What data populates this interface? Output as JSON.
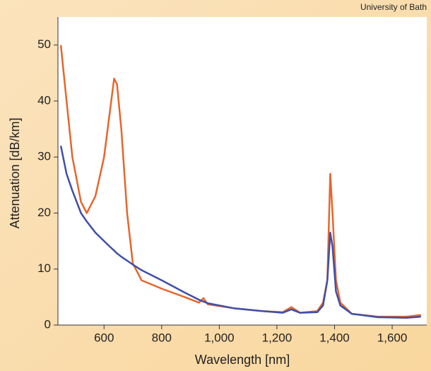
{
  "chart_data": {
    "type": "line",
    "credit": "University of Bath",
    "x_label": "Wavelength [nm]",
    "y_label": "Attenuation [dB/km]",
    "x": [
      450,
      470,
      490,
      520,
      540,
      570,
      600,
      620,
      635,
      645,
      660,
      680,
      700,
      730,
      800,
      880,
      930,
      945,
      960,
      1050,
      1150,
      1220,
      1250,
      1280,
      1340,
      1360,
      1375,
      1385,
      1393,
      1405,
      1420,
      1460,
      1550,
      1650,
      1700
    ],
    "series": [
      {
        "color": "#e8652a",
        "values": [
          50,
          40,
          30,
          22,
          20,
          23,
          30,
          38,
          44,
          43,
          35,
          20,
          11,
          8,
          6.5,
          5,
          4,
          4.8,
          3.7,
          3,
          2.5,
          2.3,
          3.2,
          2.2,
          2.5,
          4,
          8,
          27,
          20,
          8,
          4,
          2,
          1.5,
          1.5,
          1.8
        ]
      },
      {
        "color": "#3f4fa8",
        "values": [
          32,
          27,
          24,
          20,
          18.5,
          16.5,
          15,
          14,
          13.3,
          12.8,
          12.2,
          11.5,
          10.8,
          9.8,
          8,
          5.8,
          4.5,
          4.2,
          3.9,
          3,
          2.5,
          2.2,
          2.8,
          2.2,
          2.3,
          3.5,
          8,
          16.5,
          14,
          6,
          3.5,
          2,
          1.4,
          1.3,
          1.5
        ]
      }
    ],
    "xlim": [
      440,
      1720
    ],
    "ylim": [
      0,
      54
    ],
    "xticks": [
      600,
      800,
      {
        "value": 1000,
        "label": "1,000"
      },
      {
        "value": 1200,
        "label": "1,200"
      },
      {
        "value": 1400,
        "label": "1,400"
      },
      {
        "value": 1600,
        "label": "1,600"
      }
    ],
    "yticks": [
      0,
      10,
      20,
      30,
      40,
      50
    ]
  }
}
